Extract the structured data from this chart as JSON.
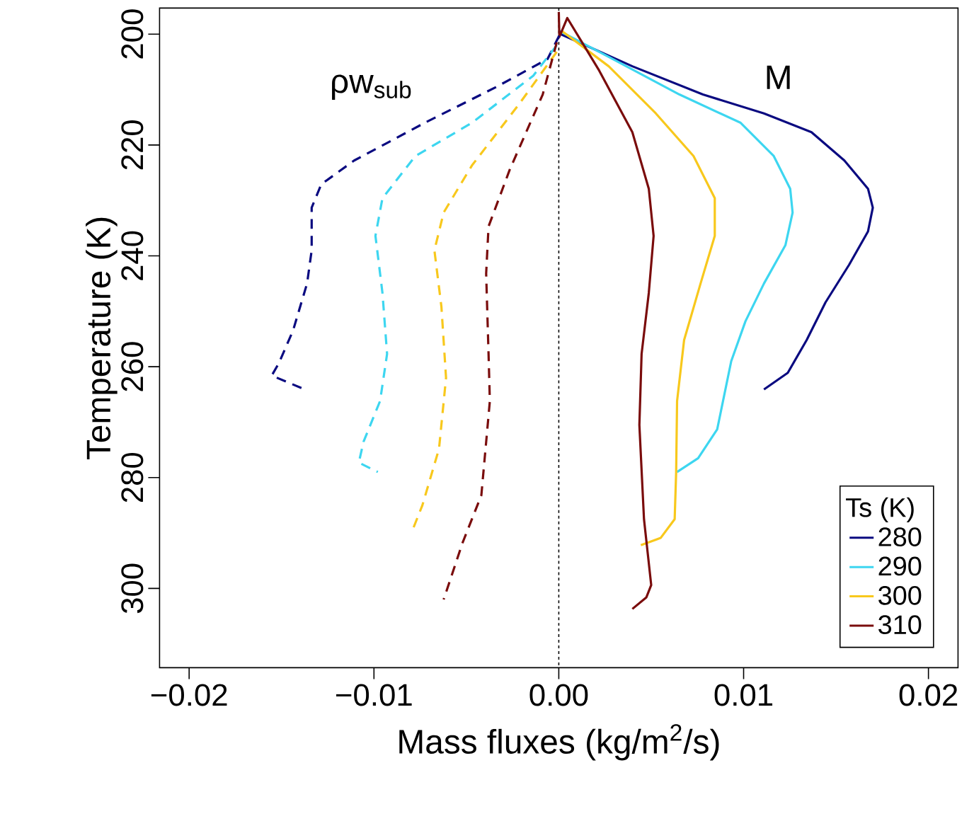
{
  "chart_data": {
    "type": "line",
    "xlabel": "Mass fluxes  (kg/m$^{2}$/s)",
    "ylabel": "Temperature (K)",
    "legend_title": "Ts (K)",
    "legend": "bottom right",
    "grid": false,
    "xlim": [
      -0.0216,
      0.0216
    ],
    "ylim": [
      314.3,
      195.3
    ],
    "xticks": [
      {
        "value": -0.02,
        "label": "−0.02"
      },
      {
        "value": -0.01,
        "label": "−0.01"
      },
      {
        "value": 0,
        "label": "0.00"
      },
      {
        "value": 0.01,
        "label": "0.01"
      },
      {
        "value": 0.02,
        "label": "0.02"
      }
    ],
    "yticks": [
      200,
      220,
      240,
      260,
      280,
      300
    ],
    "ref_lines": [
      {
        "axis": "x",
        "value": 0,
        "color": "#000000",
        "line_style": "dotted"
      }
    ],
    "annotations": [
      "ρw$_{sub}$",
      "M"
    ],
    "series": [
      {
        "name": "280",
        "color": "#0a0a80",
        "line_style": "solid",
        "x": [
          0.0001,
          0.00398,
          0.0078,
          0.0111,
          0.01367,
          0.01545,
          0.01673,
          0.01699,
          0.01673,
          0.01571,
          0.01443,
          0.01341,
          0.01239,
          0.0111
        ],
        "values": [
          200,
          205.8,
          210.9,
          214.3,
          217.7,
          222.8,
          227.9,
          231.3,
          235.6,
          241.6,
          248.4,
          255.2,
          261.1,
          264.1
        ]
      },
      {
        "name": "290",
        "color": "#3dd6f0",
        "line_style": "solid",
        "x": [
          2e-05,
          0.0027,
          0.00653,
          0.00984,
          0.01163,
          0.01252,
          0.01265,
          0.01226,
          0.0111,
          0.0101,
          0.00933,
          0.00857,
          0.00754,
          0.0064
        ],
        "values": [
          199.4,
          204.1,
          210.9,
          216,
          222,
          227.9,
          232.2,
          238.1,
          245,
          251.8,
          259,
          271.3,
          276.5,
          279
        ]
      },
      {
        "name": "300",
        "color": "#f8c81c",
        "line_style": "solid",
        "x": [
          0.00015,
          0.0027,
          0.00525,
          0.00729,
          0.00844,
          0.00844,
          0.00767,
          0.00678,
          0.0064,
          0.00635,
          0.00627,
          0.00551,
          0.00444
        ],
        "values": [
          199.4,
          205.8,
          214.3,
          222,
          229.6,
          236.4,
          245,
          255.2,
          266.2,
          279,
          287.5,
          290.9,
          292.2
        ]
      },
      {
        "name": "310",
        "color": "#7a0c0c",
        "line_style": "solid",
        "x": [
          0.0,
          3e-05,
          0.00046,
          0.00219,
          0.00398,
          0.00487,
          0.00513,
          0.00487,
          0.00448,
          0.00436,
          0.00461,
          0.005,
          0.00474,
          0.00398
        ],
        "values": [
          196,
          200.5,
          197.1,
          206.6,
          217.7,
          227.9,
          236.4,
          246.7,
          257.7,
          270.5,
          287.5,
          299.4,
          301.6,
          303.7
        ]
      },
      {
        "color": "#0a0a80",
        "line_style": "dashed",
        "x": [
          2e-05,
          -0.00061,
          -0.00342,
          -0.00725,
          -0.01107,
          -0.01285,
          -0.01337,
          -0.01337,
          -0.01362,
          -0.01438,
          -0.01515,
          -0.01553,
          -0.01375
        ],
        "values": [
          200.3,
          204.5,
          209.6,
          216,
          222.8,
          227.1,
          231.3,
          239,
          245,
          253.5,
          259.4,
          261.6,
          264.1
        ]
      },
      {
        "color": "#3dd6f0",
        "line_style": "dashed",
        "x": [
          -0.00011,
          -0.00138,
          -0.0047,
          -0.00776,
          -0.00954,
          -0.00992,
          -0.00954,
          -0.00929,
          -0.00967,
          -0.01056,
          -0.01082,
          -0.00979
        ],
        "values": [
          202,
          207.5,
          216,
          222,
          229.6,
          236.4,
          246.7,
          257.7,
          266.2,
          273.5,
          277.3,
          279
        ]
      },
      {
        "color": "#f8c81c",
        "line_style": "dashed",
        "x": [
          -0.00011,
          -0.00214,
          -0.0047,
          -0.00623,
          -0.00673,
          -0.00635,
          -0.0061,
          -0.00648,
          -0.00738,
          -0.00788
        ],
        "values": [
          203.2,
          212.6,
          223.7,
          232.2,
          239,
          249.2,
          262,
          274.8,
          285,
          289.2
        ]
      },
      {
        "color": "#7a0c0c",
        "line_style": "dashed",
        "x": [
          -0.00011,
          -0.00087,
          -0.00266,
          -0.0038,
          -0.00393,
          -0.0038,
          -0.00373,
          -0.00419,
          -0.00521,
          -0.00623
        ],
        "values": [
          201.5,
          210.9,
          224.5,
          234.7,
          243.2,
          257.7,
          266.2,
          283.2,
          291.8,
          302
        ]
      }
    ]
  }
}
